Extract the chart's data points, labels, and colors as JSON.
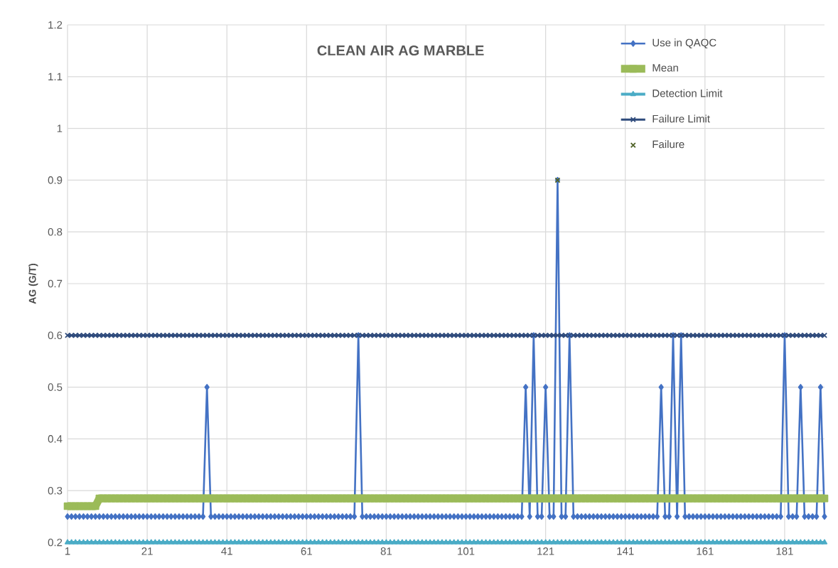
{
  "chart_data": {
    "type": "line",
    "title": "CLEAN AIR AG MARBLE",
    "ylabel": "AG (G/T)",
    "x": [
      1,
      2,
      3,
      4,
      5,
      6,
      7,
      8,
      9,
      10,
      11,
      12,
      13,
      14,
      15,
      16,
      17,
      18,
      19,
      20,
      21,
      22,
      23,
      24,
      25,
      26,
      27,
      28,
      29,
      30,
      31,
      32,
      33,
      34,
      35,
      36,
      37,
      38,
      39,
      40,
      41,
      42,
      43,
      44,
      45,
      46,
      47,
      48,
      49,
      50,
      51,
      52,
      53,
      54,
      55,
      56,
      57,
      58,
      59,
      60,
      61,
      62,
      63,
      64,
      65,
      66,
      67,
      68,
      69,
      70,
      71,
      72,
      73,
      74,
      75,
      76,
      77,
      78,
      79,
      80,
      81,
      82,
      83,
      84,
      85,
      86,
      87,
      88,
      89,
      90,
      91,
      92,
      93,
      94,
      95,
      96,
      97,
      98,
      99,
      100,
      101,
      102,
      103,
      104,
      105,
      106,
      107,
      108,
      109,
      110,
      111,
      112,
      113,
      114,
      115,
      116,
      117,
      118,
      119,
      120,
      121,
      122,
      123,
      124,
      125,
      126,
      127,
      128,
      129,
      130,
      131,
      132,
      133,
      134,
      135,
      136,
      137,
      138,
      139,
      140,
      141,
      142,
      143,
      144,
      145,
      146,
      147,
      148,
      149,
      150,
      151,
      152,
      153,
      154,
      155,
      156,
      157,
      158,
      159,
      160,
      161,
      162,
      163,
      164,
      165,
      166,
      167,
      168,
      169,
      170,
      171,
      172,
      173,
      174,
      175,
      176,
      177,
      178,
      179,
      180,
      181,
      182,
      183,
      184,
      185,
      186,
      187,
      188,
      189,
      190,
      191
    ],
    "series": [
      {
        "name": "Use in QAQC",
        "color": "#4472c4",
        "marker": "diamond",
        "values": [
          0.25,
          0.25,
          0.25,
          0.25,
          0.25,
          0.25,
          0.25,
          0.25,
          0.25,
          0.25,
          0.25,
          0.25,
          0.25,
          0.25,
          0.25,
          0.25,
          0.25,
          0.25,
          0.25,
          0.25,
          0.25,
          0.25,
          0.25,
          0.25,
          0.25,
          0.25,
          0.25,
          0.25,
          0.25,
          0.25,
          0.25,
          0.25,
          0.25,
          0.25,
          0.25,
          0.5,
          0.25,
          0.25,
          0.25,
          0.25,
          0.25,
          0.25,
          0.25,
          0.25,
          0.25,
          0.25,
          0.25,
          0.25,
          0.25,
          0.25,
          0.25,
          0.25,
          0.25,
          0.25,
          0.25,
          0.25,
          0.25,
          0.25,
          0.25,
          0.25,
          0.25,
          0.25,
          0.25,
          0.25,
          0.25,
          0.25,
          0.25,
          0.25,
          0.25,
          0.25,
          0.25,
          0.25,
          0.25,
          0.6,
          0.25,
          0.25,
          0.25,
          0.25,
          0.25,
          0.25,
          0.25,
          0.25,
          0.25,
          0.25,
          0.25,
          0.25,
          0.25,
          0.25,
          0.25,
          0.25,
          0.25,
          0.25,
          0.25,
          0.25,
          0.25,
          0.25,
          0.25,
          0.25,
          0.25,
          0.25,
          0.25,
          0.25,
          0.25,
          0.25,
          0.25,
          0.25,
          0.25,
          0.25,
          0.25,
          0.25,
          0.25,
          0.25,
          0.25,
          0.25,
          0.25,
          0.5,
          0.25,
          0.6,
          0.25,
          0.25,
          0.5,
          0.25,
          0.25,
          0.9,
          0.25,
          0.25,
          0.6,
          0.25,
          0.25,
          0.25,
          0.25,
          0.25,
          0.25,
          0.25,
          0.25,
          0.25,
          0.25,
          0.25,
          0.25,
          0.25,
          0.25,
          0.25,
          0.25,
          0.25,
          0.25,
          0.25,
          0.25,
          0.25,
          0.25,
          0.5,
          0.25,
          0.25,
          0.6,
          0.25,
          0.6,
          0.25,
          0.25,
          0.25,
          0.25,
          0.25,
          0.25,
          0.25,
          0.25,
          0.25,
          0.25,
          0.25,
          0.25,
          0.25,
          0.25,
          0.25,
          0.25,
          0.25,
          0.25,
          0.25,
          0.25,
          0.25,
          0.25,
          0.25,
          0.25,
          0.25,
          0.6,
          0.25,
          0.25,
          0.25,
          0.5,
          0.25,
          0.25,
          0.25,
          0.25,
          0.5,
          0.25
        ]
      },
      {
        "name": "Mean",
        "color": "#9bbb59",
        "marker": "square",
        "values": [
          0.27,
          0.27,
          0.27,
          0.27,
          0.27,
          0.27,
          0.27,
          0.27,
          0.285,
          0.285,
          0.285,
          0.285,
          0.285,
          0.285,
          0.285,
          0.285,
          0.285,
          0.285,
          0.285,
          0.285,
          0.285,
          0.285,
          0.285,
          0.285,
          0.285,
          0.285,
          0.285,
          0.285,
          0.285,
          0.285,
          0.285,
          0.285,
          0.285,
          0.285,
          0.285,
          0.285,
          0.285,
          0.285,
          0.285,
          0.285,
          0.285,
          0.285,
          0.285,
          0.285,
          0.285,
          0.285,
          0.285,
          0.285,
          0.285,
          0.285,
          0.285,
          0.285,
          0.285,
          0.285,
          0.285,
          0.285,
          0.285,
          0.285,
          0.285,
          0.285,
          0.285,
          0.285,
          0.285,
          0.285,
          0.285,
          0.285,
          0.285,
          0.285,
          0.285,
          0.285,
          0.285,
          0.285,
          0.285,
          0.285,
          0.285,
          0.285,
          0.285,
          0.285,
          0.285,
          0.285,
          0.285,
          0.285,
          0.285,
          0.285,
          0.285,
          0.285,
          0.285,
          0.285,
          0.285,
          0.285,
          0.285,
          0.285,
          0.285,
          0.285,
          0.285,
          0.285,
          0.285,
          0.285,
          0.285,
          0.285,
          0.285,
          0.285,
          0.285,
          0.285,
          0.285,
          0.285,
          0.285,
          0.285,
          0.285,
          0.285,
          0.285,
          0.285,
          0.285,
          0.285,
          0.285,
          0.285,
          0.285,
          0.285,
          0.285,
          0.285,
          0.285,
          0.285,
          0.285,
          0.285,
          0.285,
          0.285,
          0.285,
          0.285,
          0.285,
          0.285,
          0.285,
          0.285,
          0.285,
          0.285,
          0.285,
          0.285,
          0.285,
          0.285,
          0.285,
          0.285,
          0.285,
          0.285,
          0.285,
          0.285,
          0.285,
          0.285,
          0.285,
          0.285,
          0.285,
          0.285,
          0.285,
          0.285,
          0.285,
          0.285,
          0.285,
          0.285,
          0.285,
          0.285,
          0.285,
          0.285,
          0.285,
          0.285,
          0.285,
          0.285,
          0.285,
          0.285,
          0.285,
          0.285,
          0.285,
          0.285,
          0.285,
          0.285,
          0.285,
          0.285,
          0.285,
          0.285,
          0.285,
          0.285,
          0.285,
          0.285,
          0.285,
          0.285,
          0.285,
          0.285,
          0.285,
          0.285,
          0.285,
          0.285,
          0.285,
          0.285,
          0.285
        ]
      },
      {
        "name": "Detection Limit",
        "color": "#4bacc6",
        "marker": "triangle",
        "values": [
          0.2,
          0.2,
          0.2,
          0.2,
          0.2,
          0.2,
          0.2,
          0.2,
          0.2,
          0.2,
          0.2,
          0.2,
          0.2,
          0.2,
          0.2,
          0.2,
          0.2,
          0.2,
          0.2,
          0.2,
          0.2,
          0.2,
          0.2,
          0.2,
          0.2,
          0.2,
          0.2,
          0.2,
          0.2,
          0.2,
          0.2,
          0.2,
          0.2,
          0.2,
          0.2,
          0.2,
          0.2,
          0.2,
          0.2,
          0.2,
          0.2,
          0.2,
          0.2,
          0.2,
          0.2,
          0.2,
          0.2,
          0.2,
          0.2,
          0.2,
          0.2,
          0.2,
          0.2,
          0.2,
          0.2,
          0.2,
          0.2,
          0.2,
          0.2,
          0.2,
          0.2,
          0.2,
          0.2,
          0.2,
          0.2,
          0.2,
          0.2,
          0.2,
          0.2,
          0.2,
          0.2,
          0.2,
          0.2,
          0.2,
          0.2,
          0.2,
          0.2,
          0.2,
          0.2,
          0.2,
          0.2,
          0.2,
          0.2,
          0.2,
          0.2,
          0.2,
          0.2,
          0.2,
          0.2,
          0.2,
          0.2,
          0.2,
          0.2,
          0.2,
          0.2,
          0.2,
          0.2,
          0.2,
          0.2,
          0.2,
          0.2,
          0.2,
          0.2,
          0.2,
          0.2,
          0.2,
          0.2,
          0.2,
          0.2,
          0.2,
          0.2,
          0.2,
          0.2,
          0.2,
          0.2,
          0.2,
          0.2,
          0.2,
          0.2,
          0.2,
          0.2,
          0.2,
          0.2,
          0.2,
          0.2,
          0.2,
          0.2,
          0.2,
          0.2,
          0.2,
          0.2,
          0.2,
          0.2,
          0.2,
          0.2,
          0.2,
          0.2,
          0.2,
          0.2,
          0.2,
          0.2,
          0.2,
          0.2,
          0.2,
          0.2,
          0.2,
          0.2,
          0.2,
          0.2,
          0.2,
          0.2,
          0.2,
          0.2,
          0.2,
          0.2,
          0.2,
          0.2,
          0.2,
          0.2,
          0.2,
          0.2,
          0.2,
          0.2,
          0.2,
          0.2,
          0.2,
          0.2,
          0.2,
          0.2,
          0.2,
          0.2,
          0.2,
          0.2,
          0.2,
          0.2,
          0.2,
          0.2,
          0.2,
          0.2,
          0.2,
          0.2,
          0.2,
          0.2,
          0.2,
          0.2,
          0.2,
          0.2,
          0.2,
          0.2,
          0.2,
          0.2
        ]
      },
      {
        "name": "Failure Limit",
        "color": "#2f4b7c",
        "marker": "cross",
        "values": [
          0.6,
          0.6,
          0.6,
          0.6,
          0.6,
          0.6,
          0.6,
          0.6,
          0.6,
          0.6,
          0.6,
          0.6,
          0.6,
          0.6,
          0.6,
          0.6,
          0.6,
          0.6,
          0.6,
          0.6,
          0.6,
          0.6,
          0.6,
          0.6,
          0.6,
          0.6,
          0.6,
          0.6,
          0.6,
          0.6,
          0.6,
          0.6,
          0.6,
          0.6,
          0.6,
          0.6,
          0.6,
          0.6,
          0.6,
          0.6,
          0.6,
          0.6,
          0.6,
          0.6,
          0.6,
          0.6,
          0.6,
          0.6,
          0.6,
          0.6,
          0.6,
          0.6,
          0.6,
          0.6,
          0.6,
          0.6,
          0.6,
          0.6,
          0.6,
          0.6,
          0.6,
          0.6,
          0.6,
          0.6,
          0.6,
          0.6,
          0.6,
          0.6,
          0.6,
          0.6,
          0.6,
          0.6,
          0.6,
          0.6,
          0.6,
          0.6,
          0.6,
          0.6,
          0.6,
          0.6,
          0.6,
          0.6,
          0.6,
          0.6,
          0.6,
          0.6,
          0.6,
          0.6,
          0.6,
          0.6,
          0.6,
          0.6,
          0.6,
          0.6,
          0.6,
          0.6,
          0.6,
          0.6,
          0.6,
          0.6,
          0.6,
          0.6,
          0.6,
          0.6,
          0.6,
          0.6,
          0.6,
          0.6,
          0.6,
          0.6,
          0.6,
          0.6,
          0.6,
          0.6,
          0.6,
          0.6,
          0.6,
          0.6,
          0.6,
          0.6,
          0.6,
          0.6,
          0.6,
          0.6,
          0.6,
          0.6,
          0.6,
          0.6,
          0.6,
          0.6,
          0.6,
          0.6,
          0.6,
          0.6,
          0.6,
          0.6,
          0.6,
          0.6,
          0.6,
          0.6,
          0.6,
          0.6,
          0.6,
          0.6,
          0.6,
          0.6,
          0.6,
          0.6,
          0.6,
          0.6,
          0.6,
          0.6,
          0.6,
          0.6,
          0.6,
          0.6,
          0.6,
          0.6,
          0.6,
          0.6,
          0.6,
          0.6,
          0.6,
          0.6,
          0.6,
          0.6,
          0.6,
          0.6,
          0.6,
          0.6,
          0.6,
          0.6,
          0.6,
          0.6,
          0.6,
          0.6,
          0.6,
          0.6,
          0.6,
          0.6,
          0.6,
          0.6,
          0.6,
          0.6,
          0.6,
          0.6,
          0.6,
          0.6,
          0.6,
          0.6,
          0.6
        ]
      },
      {
        "name": "Failure",
        "type": "scatter",
        "color": "#4f6228",
        "marker": "cross",
        "x": [
          124
        ],
        "values": [
          0.9
        ]
      }
    ],
    "xlim": [
      1,
      191
    ],
    "xticks": [
      1,
      21,
      41,
      61,
      81,
      101,
      121,
      141,
      161,
      181
    ],
    "ylim": [
      0.2,
      1.2
    ],
    "yticks": [
      0.2,
      0.3,
      0.4,
      0.5,
      0.6,
      0.7,
      0.8,
      0.9,
      1,
      1.1,
      1.2
    ],
    "grid": true,
    "legend": "top right"
  }
}
